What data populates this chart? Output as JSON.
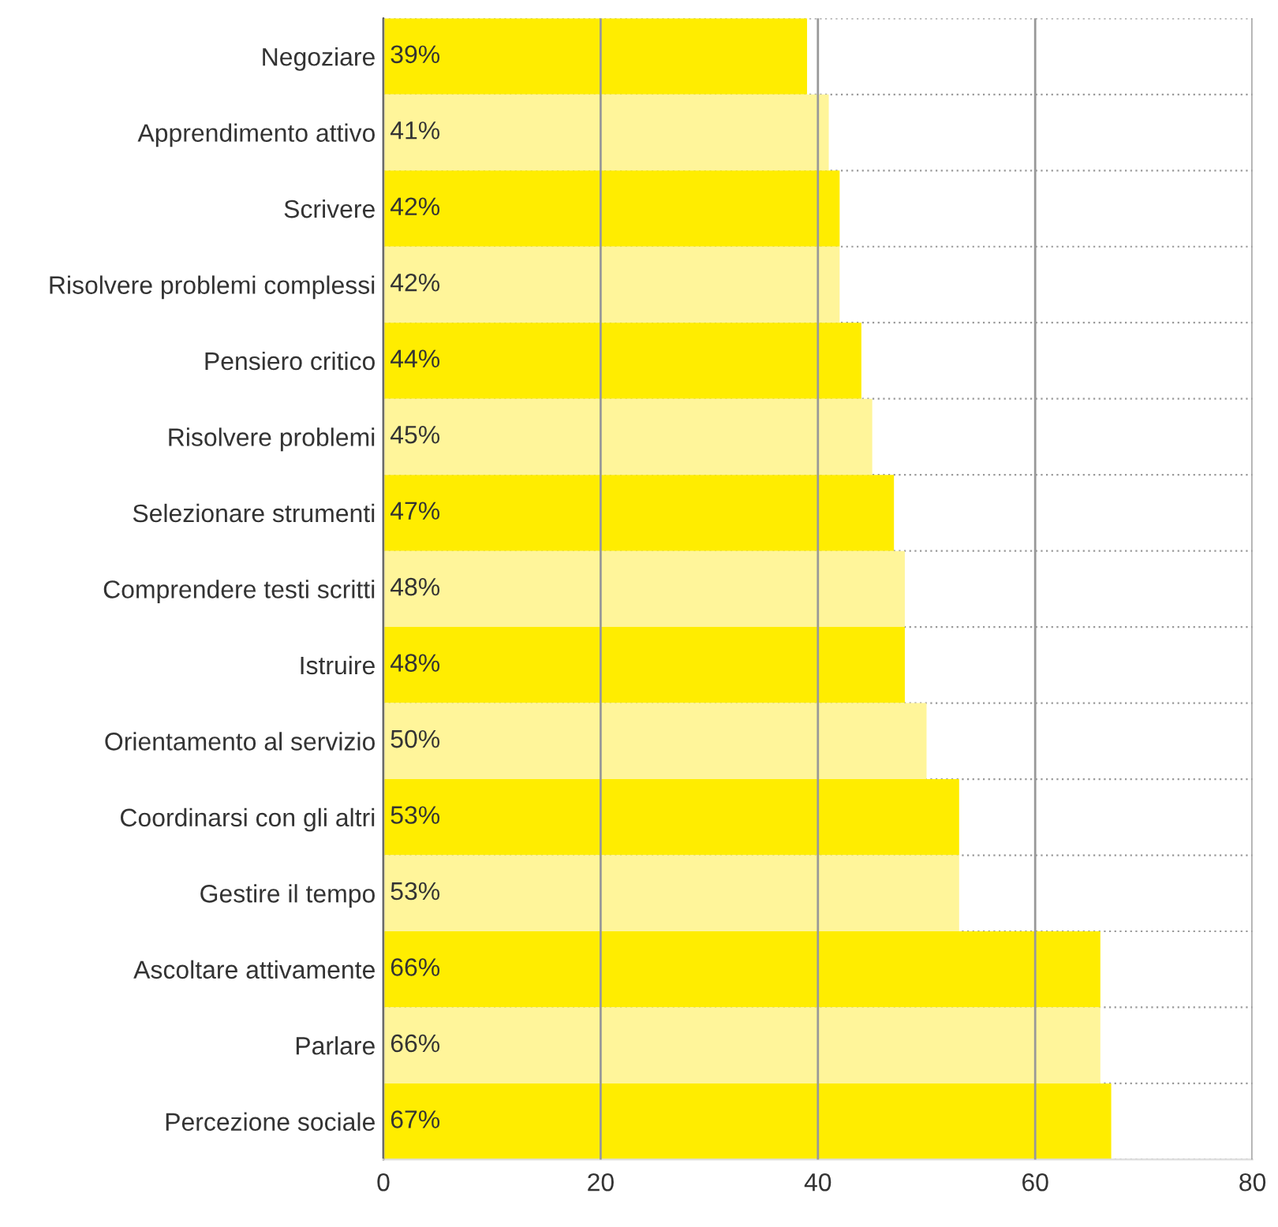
{
  "chart_data": {
    "type": "bar",
    "orientation": "horizontal",
    "categories": [
      "Negoziare",
      "Apprendimento attivo",
      "Scrivere",
      "Risolvere problemi complessi",
      "Pensiero critico",
      "Risolvere problemi",
      "Selezionare strumenti",
      "Comprendere testi scritti",
      "Istruire",
      "Orientamento al servizio",
      "Coordinarsi con gli altri",
      "Gestire il tempo",
      "Ascoltare attivamente",
      "Parlare",
      "Percezione sociale"
    ],
    "values": [
      39,
      41,
      42,
      42,
      44,
      45,
      47,
      48,
      48,
      50,
      53,
      53,
      66,
      66,
      67
    ],
    "value_labels": [
      "39%",
      "41%",
      "42%",
      "42%",
      "44%",
      "45%",
      "47%",
      "48%",
      "48%",
      "50%",
      "53%",
      "53%",
      "66%",
      "66%",
      "67%"
    ],
    "colors": [
      "#ffed00",
      "#fff59a",
      "#ffed00",
      "#fff59a",
      "#ffed00",
      "#fff59a",
      "#ffed00",
      "#fff59a",
      "#ffed00",
      "#fff59a",
      "#ffed00",
      "#fff59a",
      "#ffed00",
      "#fff59a",
      "#ffed00"
    ],
    "xlim": [
      0,
      80
    ],
    "xticks": [
      0,
      20,
      40,
      60,
      80
    ],
    "grid": "x",
    "legend": false
  }
}
